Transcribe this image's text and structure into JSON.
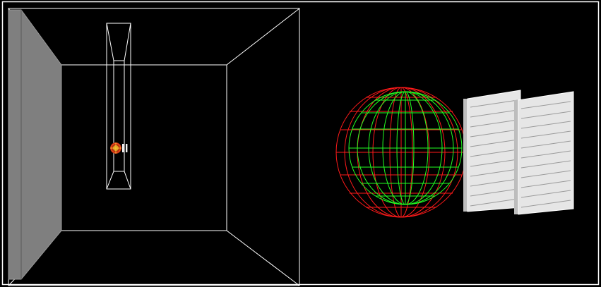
{
  "figure": {
    "background_color": "#000000",
    "frame_color": "#ffffff",
    "left_panel": {
      "view": "room-interior",
      "wireframe_color": "#ffffff",
      "side_wall_color": "#7f7f7f",
      "side_wall_edge_color": "#9a9a9a",
      "duct_color": "#ffffff",
      "sphere_outer_color": "#e03b10",
      "sphere_inner_color": "#e0a020"
    },
    "right_panel": {
      "view": "close-up",
      "sphere_outer_color": "#ff1a1a",
      "sphere_inner_color": "#22ff22",
      "panel_color": "#e6e6e6",
      "panel_count": 2
    }
  }
}
